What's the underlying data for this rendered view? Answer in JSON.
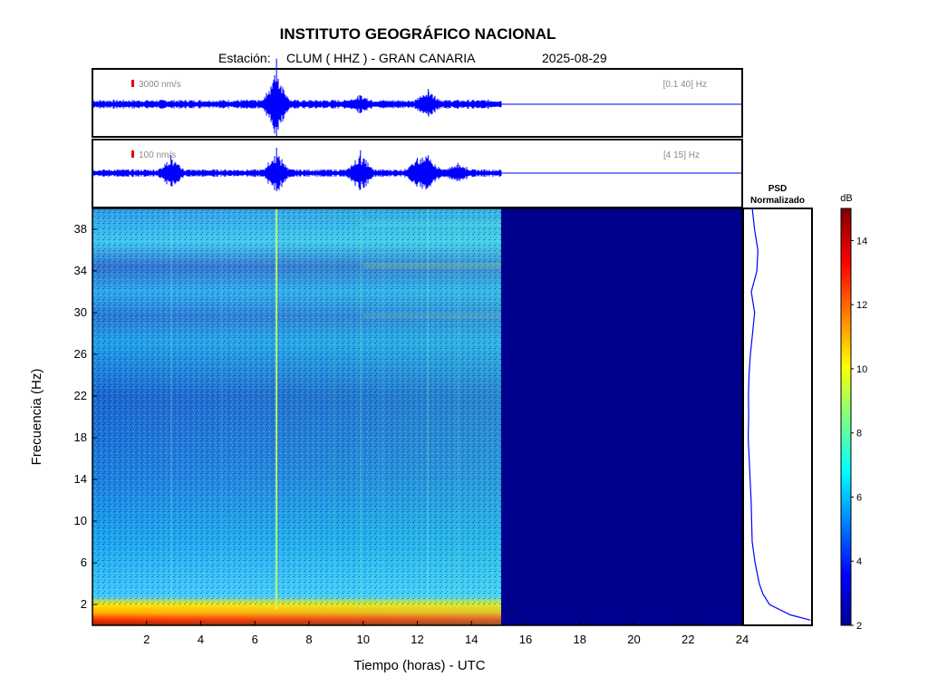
{
  "header": {
    "title": "INSTITUTO GEOGRÁFICO NACIONAL",
    "station_prefix": "Estación:",
    "station": "CLUM ( HHZ ) - GRAN CANARIA",
    "date": "2025-08-29"
  },
  "chart_data": [
    {
      "type": "line",
      "name": "seismogram-broadband",
      "scale_label": "3000 nm/s",
      "band_label": "[0.1 40] Hz",
      "x_range_hours": [
        0,
        24
      ],
      "data_end_hour": 15.1,
      "events_hours": [
        6.8,
        9.9,
        12.4
      ],
      "color": "#0000ff"
    },
    {
      "type": "line",
      "name": "seismogram-filtered",
      "scale_label": "100 nm/s",
      "band_label": "[4 15] Hz",
      "x_range_hours": [
        0,
        24
      ],
      "data_end_hour": 15.1,
      "events_hours": [
        2.9,
        6.8,
        9.9,
        12.0,
        12.4,
        13.5
      ],
      "color": "#0000ff"
    },
    {
      "type": "heatmap",
      "name": "spectrogram",
      "xlabel": "Tiempo (horas) - UTC",
      "ylabel": "Frecuencia  (Hz)",
      "xlim": [
        0,
        24
      ],
      "ylim": [
        0,
        40
      ],
      "xticks": [
        2,
        4,
        6,
        8,
        10,
        12,
        14,
        16,
        18,
        20,
        22,
        24
      ],
      "yticks": [
        2,
        6,
        10,
        14,
        18,
        22,
        26,
        30,
        34,
        38
      ],
      "data_end_hour": 15.1,
      "colorbar": {
        "label": "dB",
        "range": [
          2,
          15
        ],
        "ticks": [
          2,
          4,
          6,
          8,
          10,
          12,
          14
        ],
        "colormap": "jet"
      },
      "background_level_db": 2
    },
    {
      "type": "line",
      "name": "psd-normalizado",
      "title": "PSD\nNormalizado",
      "title_lines": [
        "PSD",
        "Normalizado"
      ],
      "freq_hz": [
        0.5,
        1,
        2,
        3,
        4,
        6,
        8,
        10,
        12,
        14,
        16,
        18,
        20,
        22,
        24,
        26,
        28,
        30,
        32,
        34,
        36,
        38,
        40
      ],
      "relative_power": [
        1.0,
        0.7,
        0.38,
        0.28,
        0.22,
        0.16,
        0.12,
        0.1,
        0.09,
        0.08,
        0.07,
        0.06,
        0.05,
        0.05,
        0.06,
        0.08,
        0.12,
        0.14,
        0.1,
        0.18,
        0.2,
        0.15,
        0.12
      ],
      "color": "#0000ff"
    }
  ]
}
